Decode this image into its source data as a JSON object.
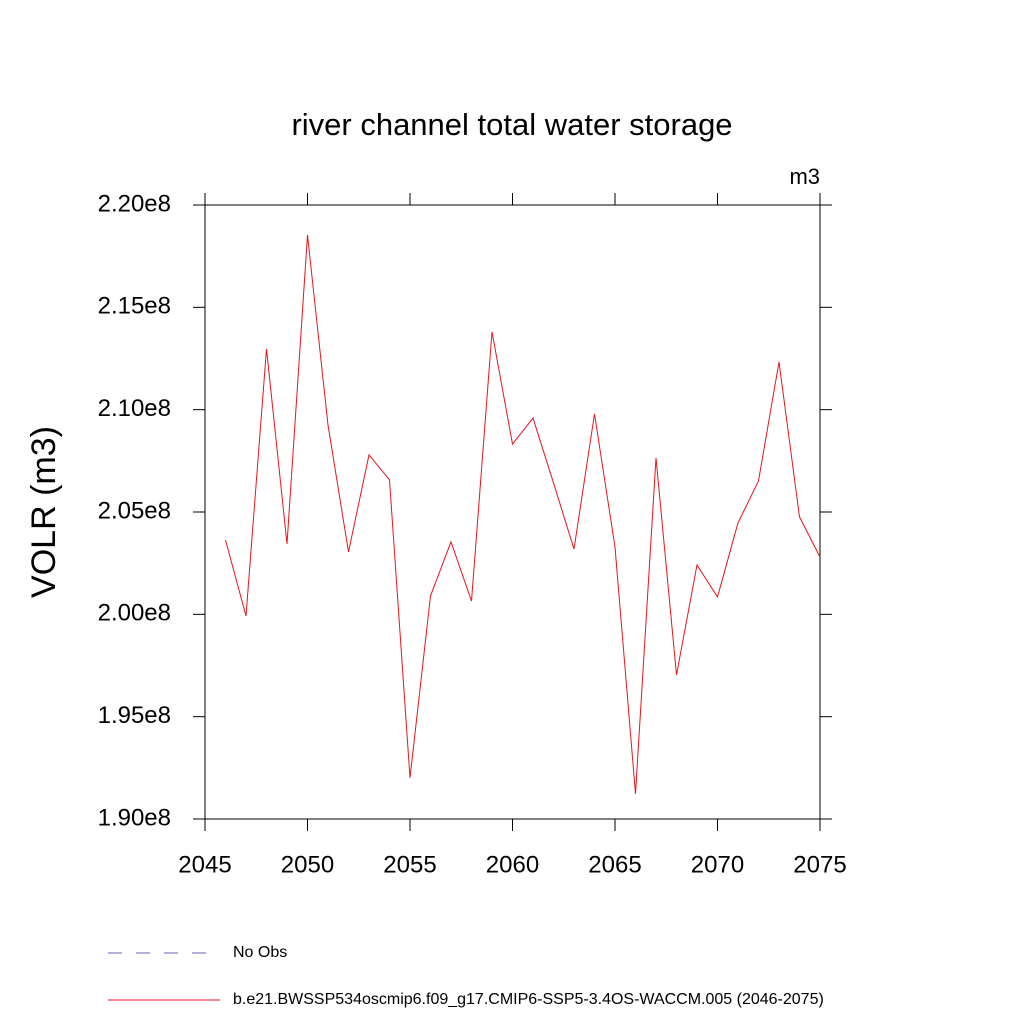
{
  "chart_data": {
    "type": "line",
    "title": "river channel total water storage",
    "units": "m3",
    "y_label": "VOLR  (m3)",
    "x": [
      2046,
      2047,
      2048,
      2049,
      2050,
      2051,
      2052,
      2053,
      2054,
      2055,
      2056,
      2057,
      2058,
      2059,
      2060,
      2061,
      2062,
      2063,
      2064,
      2065,
      2066,
      2067,
      2068,
      2069,
      2070,
      2071,
      2072,
      2073,
      2074,
      2075
    ],
    "series": [
      {
        "name": "No Obs",
        "color": "#6a5fb5",
        "dashed": true,
        "values": [
          null,
          null,
          null,
          null,
          null,
          null,
          null,
          null,
          null,
          null,
          null,
          null,
          null,
          null,
          null,
          null,
          null,
          null,
          null,
          null,
          null,
          null,
          null,
          null,
          null,
          null,
          null,
          null,
          null,
          null
        ]
      },
      {
        "name": "b.e21.BWSSP534oscmip6.f09_g17.CMIP6-SSP5-3.4OS-WACCM.005 (2046-2075)",
        "color": "#e8141c",
        "dashed": false,
        "values": [
          203630000,
          199920000,
          212970000,
          203440000,
          218530000,
          209250000,
          203050000,
          207790000,
          206570000,
          192010000,
          200900000,
          203540000,
          200650000,
          213800000,
          208320000,
          209590000,
          206420000,
          203190000,
          209790000,
          203290000,
          191230000,
          207640000,
          197040000,
          202410000,
          200850000,
          204470000,
          206520000,
          212330000,
          204760000,
          202800000
        ]
      }
    ],
    "xlim": [
      2045,
      2075
    ],
    "xticks": [
      2045,
      2050,
      2055,
      2060,
      2065,
      2070,
      2075
    ],
    "ylim": [
      190000000,
      220000000
    ],
    "yticks": [
      {
        "value": 190000000,
        "label": "1.90e8"
      },
      {
        "value": 195000000,
        "label": "1.95e8"
      },
      {
        "value": 200000000,
        "label": "2.00e8"
      },
      {
        "value": 205000000,
        "label": "2.05e8"
      },
      {
        "value": 210000000,
        "label": "2.10e8"
      },
      {
        "value": 215000000,
        "label": "2.15e8"
      },
      {
        "value": 220000000,
        "label": "2.20e8"
      }
    ]
  }
}
